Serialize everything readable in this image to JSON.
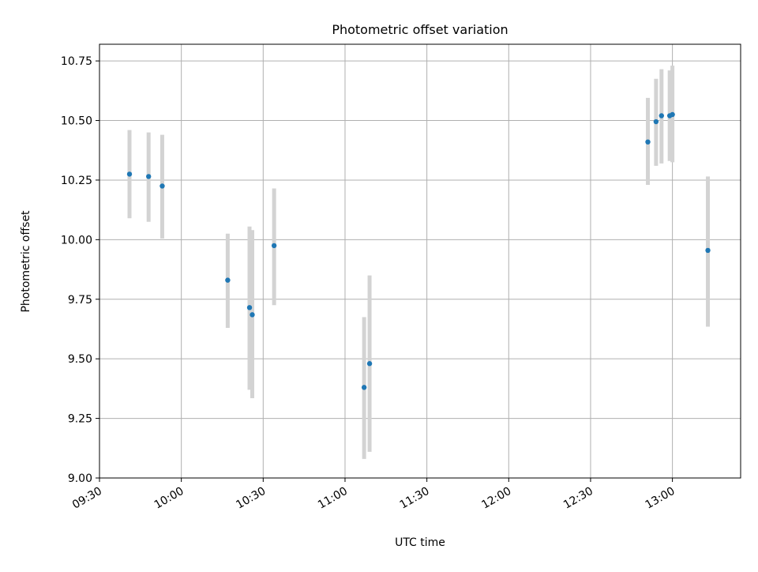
{
  "chart_data": {
    "type": "scatter",
    "title": "Photometric offset variation",
    "xlabel": "UTC time",
    "ylabel": "Photometric offset",
    "x_axis_kind": "time",
    "xlim": [
      "09:30",
      "13:25"
    ],
    "ylim": [
      9.0,
      10.82
    ],
    "x_ticks": [
      "09:30",
      "10:00",
      "10:30",
      "11:00",
      "11:30",
      "12:00",
      "12:30",
      "13:00"
    ],
    "y_ticks": [
      "9.00",
      "9.25",
      "9.50",
      "9.75",
      "10.00",
      "10.25",
      "10.50",
      "10.75"
    ],
    "grid": true,
    "legend": "none",
    "marker_color": "#1f77b4",
    "errorbar_color": "#d3d3d3",
    "points": [
      {
        "x": "09:41",
        "y": 10.275,
        "ylo": 10.09,
        "yhi": 10.46
      },
      {
        "x": "09:48",
        "y": 10.265,
        "ylo": 10.075,
        "yhi": 10.45
      },
      {
        "x": "09:53",
        "y": 10.225,
        "ylo": 10.005,
        "yhi": 10.44
      },
      {
        "x": "10:17",
        "y": 9.83,
        "ylo": 9.63,
        "yhi": 10.025
      },
      {
        "x": "10:25",
        "y": 9.715,
        "ylo": 9.37,
        "yhi": 10.055
      },
      {
        "x": "10:26",
        "y": 9.685,
        "ylo": 9.335,
        "yhi": 10.04
      },
      {
        "x": "10:34",
        "y": 9.975,
        "ylo": 9.725,
        "yhi": 10.215
      },
      {
        "x": "11:07",
        "y": 9.38,
        "ylo": 9.08,
        "yhi": 9.675
      },
      {
        "x": "11:09",
        "y": 9.48,
        "ylo": 9.11,
        "yhi": 9.85
      },
      {
        "x": "12:51",
        "y": 10.41,
        "ylo": 10.23,
        "yhi": 10.595
      },
      {
        "x": "12:54",
        "y": 10.495,
        "ylo": 10.31,
        "yhi": 10.675
      },
      {
        "x": "12:56",
        "y": 10.52,
        "ylo": 10.32,
        "yhi": 10.715
      },
      {
        "x": "12:59",
        "y": 10.52,
        "ylo": 10.33,
        "yhi": 10.71
      },
      {
        "x": "13:00",
        "y": 10.525,
        "ylo": 10.325,
        "yhi": 10.73
      },
      {
        "x": "13:13",
        "y": 9.955,
        "ylo": 9.635,
        "yhi": 10.265
      }
    ]
  }
}
